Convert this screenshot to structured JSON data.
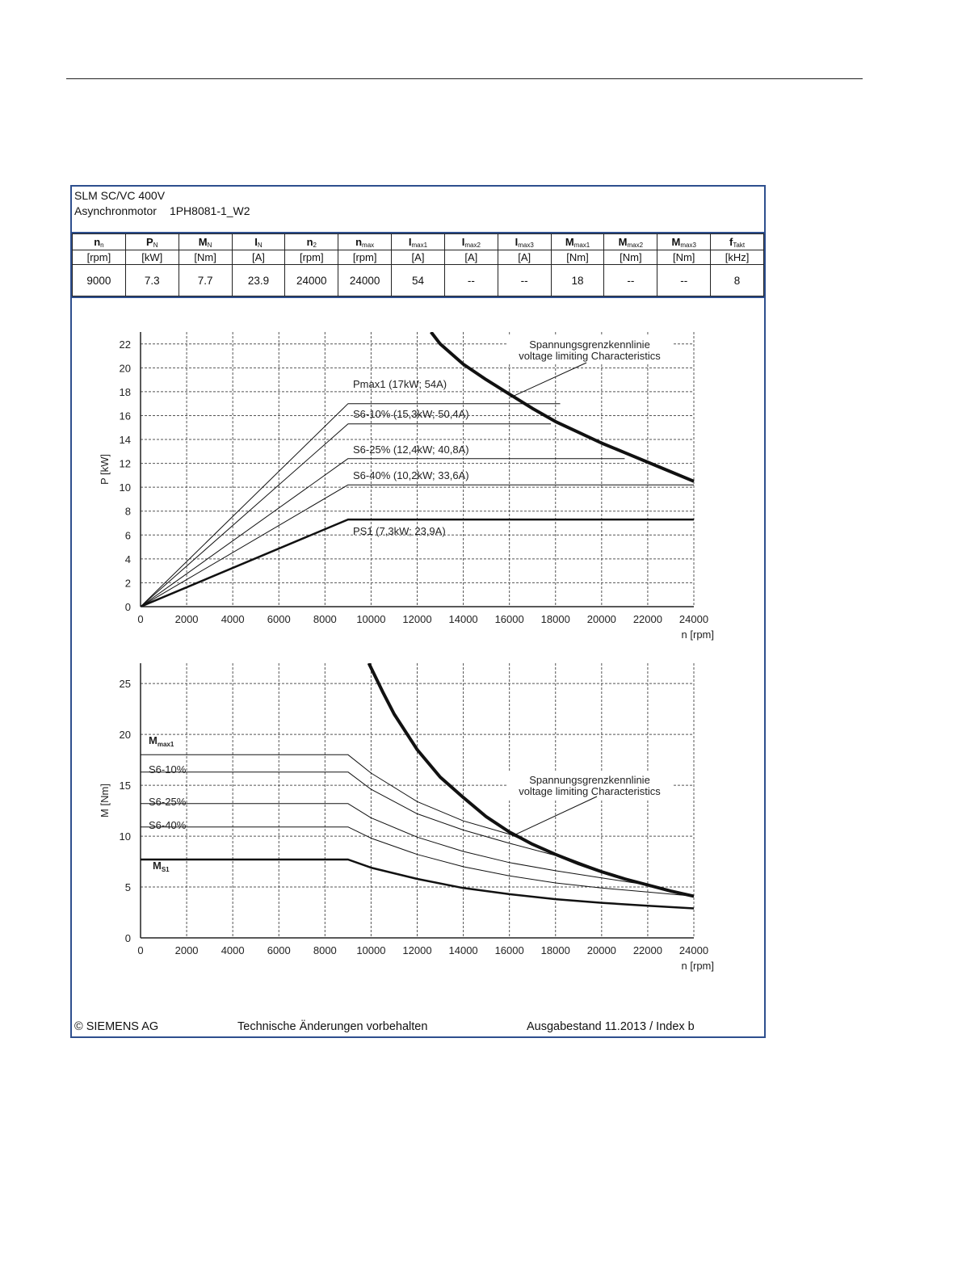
{
  "header": {
    "line1": "SLM SC/VC 400V",
    "motor_type": "Asynchronmotor",
    "motor_model": "1PH8081-1_W2"
  },
  "spec_table": {
    "columns": [
      {
        "sym": "n",
        "sub": "n",
        "unit": "[rpm]",
        "value": "9000"
      },
      {
        "sym": "P",
        "sub": "N",
        "unit": "[kW]",
        "value": "7.3"
      },
      {
        "sym": "M",
        "sub": "N",
        "unit": "[Nm]",
        "value": "7.7"
      },
      {
        "sym": "I",
        "sub": "N",
        "unit": "[A]",
        "value": "23.9"
      },
      {
        "sym": "n",
        "sub": "2",
        "unit": "[rpm]",
        "value": "24000"
      },
      {
        "sym": "n",
        "sub": "max",
        "unit": "[rpm]",
        "value": "24000"
      },
      {
        "sym": "I",
        "sub": "max1",
        "unit": "[A]",
        "value": "54"
      },
      {
        "sym": "I",
        "sub": "max2",
        "unit": "[A]",
        "value": "--"
      },
      {
        "sym": "I",
        "sub": "max3",
        "unit": "[A]",
        "value": "--"
      },
      {
        "sym": "M",
        "sub": "max1",
        "unit": "[Nm]",
        "value": "18"
      },
      {
        "sym": "M",
        "sub": "max2",
        "unit": "[Nm]",
        "value": "--"
      },
      {
        "sym": "M",
        "sub": "max3",
        "unit": "[Nm]",
        "value": "--"
      },
      {
        "sym": "f",
        "sub": "Takt",
        "unit": "[kHz]",
        "value": "8"
      }
    ]
  },
  "chart_data": [
    {
      "type": "line",
      "xlabel": "n [rpm]",
      "ylabel": "P [kW]",
      "xlim": [
        0,
        24000
      ],
      "ylim": [
        0,
        23
      ],
      "xticks": [
        "0",
        "2000",
        "4000",
        "6000",
        "8000",
        "10000",
        "12000",
        "14000",
        "16000",
        "18000",
        "20000",
        "22000",
        "24000"
      ],
      "yticks": [
        "0",
        "2",
        "4",
        "6",
        "8",
        "10",
        "12",
        "14",
        "16",
        "18",
        "20",
        "22"
      ],
      "grid": true,
      "series": [
        {
          "name": "Pmax1 (17kW; 54A)",
          "x": [
            0,
            9000,
            18200
          ],
          "y": [
            0,
            17,
            17
          ]
        },
        {
          "name": "S6-10% (15,3kW; 50,4A)",
          "x": [
            0,
            9000,
            17800
          ],
          "y": [
            0,
            15.3,
            15.3
          ]
        },
        {
          "name": "S6-25% (12,4kW; 40,8A)",
          "x": [
            0,
            9000,
            21000
          ],
          "y": [
            0,
            12.4,
            12.4
          ]
        },
        {
          "name": "S6-40% (10,2kW; 33,6A)",
          "x": [
            0,
            9000,
            24000
          ],
          "y": [
            0,
            10.2,
            10.2
          ]
        },
        {
          "name": "PS1 (7,3kW; 23,9A)",
          "x": [
            0,
            9000,
            24000
          ],
          "y": [
            0,
            7.3,
            7.3
          ]
        },
        {
          "name": "",
          "x": [
            12600,
            13000,
            14000,
            15000,
            16000,
            17000,
            18000,
            19000,
            20000,
            21000,
            22000,
            23000,
            24000
          ],
          "y": [
            23.0,
            22.0,
            20.3,
            19.0,
            17.8,
            16.6,
            15.5,
            14.6,
            13.7,
            12.9,
            12.1,
            11.3,
            10.5
          ]
        }
      ],
      "annotations": [
        "Spannungsgrenzkennlinie",
        "voltage limiting  Characteristics"
      ]
    },
    {
      "type": "line",
      "xlabel": "n [rpm]",
      "ylabel": "M [Nm]",
      "xlim": [
        0,
        24000
      ],
      "ylim": [
        0,
        27
      ],
      "xticks": [
        "0",
        "2000",
        "4000",
        "6000",
        "8000",
        "10000",
        "12000",
        "14000",
        "16000",
        "18000",
        "20000",
        "22000",
        "24000"
      ],
      "yticks": [
        "0",
        "5",
        "10",
        "15",
        "20",
        "25"
      ],
      "grid": true,
      "series": [
        {
          "name": "M",
          "name_sub": "max1",
          "x": [
            0,
            9000,
            10000,
            12000,
            14000,
            16000,
            18000,
            20000,
            22000,
            24000
          ],
          "y": [
            18,
            18,
            16.2,
            13.4,
            11.5,
            10.2,
            8.3,
            6.6,
            5.2,
            4.1
          ]
        },
        {
          "name": "S6-10%",
          "x": [
            0,
            9000,
            10000,
            12000,
            14000,
            16000,
            18000,
            20000,
            22000,
            24000
          ],
          "y": [
            16.3,
            16.3,
            14.6,
            12.2,
            10.6,
            9.3,
            8.1,
            6.6,
            5.2,
            4.1
          ]
        },
        {
          "name": "S6-25%",
          "x": [
            0,
            9000,
            10000,
            12000,
            14000,
            16000,
            18000,
            20000,
            22000,
            24000
          ],
          "y": [
            13.2,
            13.2,
            11.8,
            9.9,
            8.5,
            7.4,
            6.6,
            5.9,
            5.2,
            4.1
          ]
        },
        {
          "name": "S6-40%",
          "x": [
            0,
            9000,
            10000,
            12000,
            14000,
            16000,
            18000,
            20000,
            22000,
            24000
          ],
          "y": [
            10.9,
            10.9,
            9.8,
            8.2,
            7.0,
            6.1,
            5.4,
            4.9,
            4.5,
            4.1
          ]
        },
        {
          "name": "M",
          "name_sub": "S1",
          "x": [
            0,
            9000,
            10000,
            12000,
            14000,
            16000,
            18000,
            20000,
            22000,
            24000
          ],
          "y": [
            7.7,
            7.7,
            6.9,
            5.8,
            4.9,
            4.3,
            3.8,
            3.45,
            3.15,
            2.9
          ]
        },
        {
          "name": "",
          "x": [
            9900,
            10500,
            11000,
            12000,
            13000,
            14000,
            15000,
            16000,
            17000,
            18000,
            19000,
            20000,
            21000,
            22000,
            23000,
            24000
          ],
          "y": [
            27.0,
            24.2,
            22.0,
            18.5,
            15.8,
            13.8,
            11.9,
            10.4,
            9.2,
            8.2,
            7.3,
            6.5,
            5.8,
            5.2,
            4.6,
            4.1
          ]
        }
      ],
      "annotations": [
        "Spannungsgrenzkennlinie",
        "voltage limiting  Characteristics"
      ]
    }
  ],
  "footer": {
    "copyright": "© SIEMENS AG",
    "notice": "Technische Änderungen vorbehalten",
    "edition": "Ausgabestand 11.2013 / Index b"
  },
  "colors": {
    "frame": "#2e4f8e",
    "ink": "#111111"
  }
}
